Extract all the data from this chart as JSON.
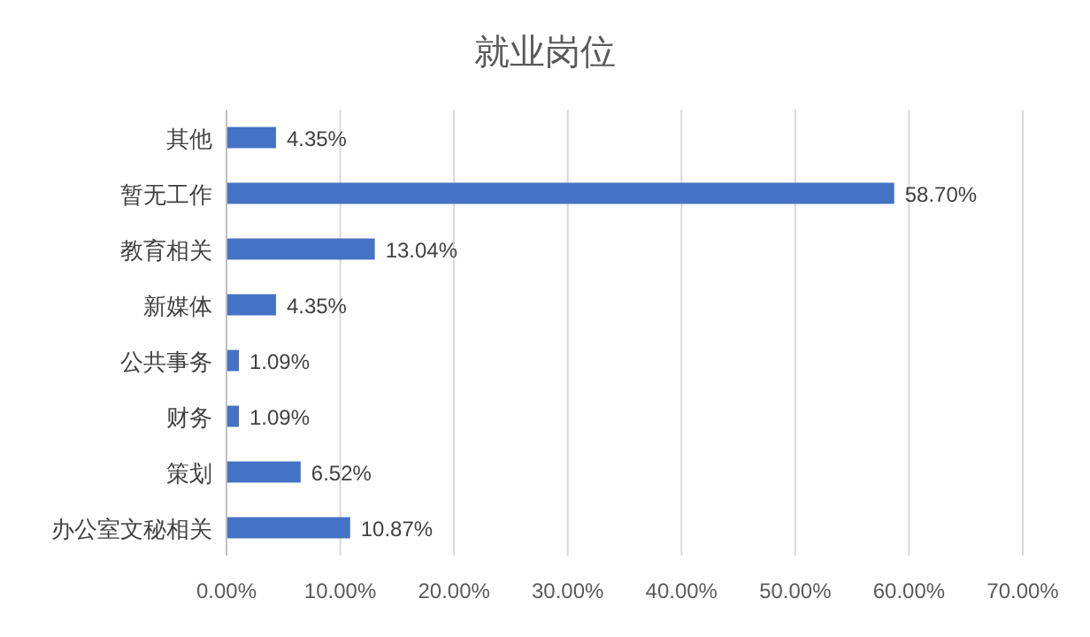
{
  "chart_data": {
    "type": "bar",
    "orientation": "horizontal",
    "title": "就业岗位",
    "categories": [
      "其他",
      "暂无工作",
      "教育相关",
      "新媒体",
      "公共事务",
      "财务",
      "策划",
      "办公室文秘相关"
    ],
    "values": [
      4.35,
      58.7,
      13.04,
      4.35,
      1.09,
      1.09,
      6.52,
      10.87
    ],
    "value_labels": [
      "4.35%",
      "58.70%",
      "13.04%",
      "4.35%",
      "1.09%",
      "1.09%",
      "6.52%",
      "10.87%"
    ],
    "color": "#4472c4",
    "xlim": [
      0,
      70
    ],
    "xticks": [
      {
        "value": 0,
        "label": "0.00%"
      },
      {
        "value": 10,
        "label": "10.00%"
      },
      {
        "value": 20,
        "label": "20.00%"
      },
      {
        "value": 30,
        "label": "30.00%"
      },
      {
        "value": 40,
        "label": "40.00%"
      },
      {
        "value": 50,
        "label": "50.00%"
      },
      {
        "value": 60,
        "label": "60.00%"
      },
      {
        "value": 70,
        "label": "70.00%"
      }
    ],
    "grid": "x"
  }
}
